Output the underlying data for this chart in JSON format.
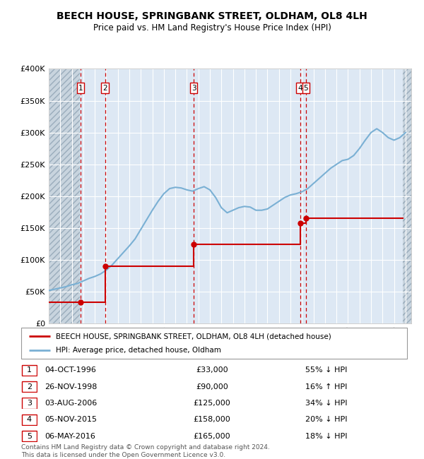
{
  "title": "BEECH HOUSE, SPRINGBANK STREET, OLDHAM, OL8 4LH",
  "subtitle": "Price paid vs. HM Land Registry's House Price Index (HPI)",
  "legend_label_red": "BEECH HOUSE, SPRINGBANK STREET, OLDHAM, OL8 4LH (detached house)",
  "legend_label_blue": "HPI: Average price, detached house, Oldham",
  "footer": "Contains HM Land Registry data © Crown copyright and database right 2024.\nThis data is licensed under the Open Government Licence v3.0.",
  "table": [
    {
      "num": "1",
      "date": "04-OCT-1996",
      "price": "£33,000",
      "hpi": "55% ↓ HPI"
    },
    {
      "num": "2",
      "date": "26-NOV-1998",
      "price": "£90,000",
      "hpi": "16% ↑ HPI"
    },
    {
      "num": "3",
      "date": "03-AUG-2006",
      "price": "£125,000",
      "hpi": "34% ↓ HPI"
    },
    {
      "num": "4",
      "date": "05-NOV-2015",
      "price": "£158,000",
      "hpi": "20% ↓ HPI"
    },
    {
      "num": "5",
      "date": "06-MAY-2016",
      "price": "£165,000",
      "hpi": "18% ↓ HPI"
    }
  ],
  "sale_dates_x": [
    1996.76,
    1998.9,
    2006.59,
    2015.84,
    2016.35
  ],
  "sale_prices_y": [
    33000,
    90000,
    125000,
    158000,
    165000
  ],
  "ylim": [
    0,
    400000
  ],
  "yticks": [
    0,
    50000,
    100000,
    150000,
    200000,
    250000,
    300000,
    350000,
    400000
  ],
  "xlim_min": 1994.0,
  "xlim_max": 2025.5,
  "red_color": "#cc0000",
  "blue_color": "#7ab0d4",
  "bg_plot": "#dde8f4",
  "bg_figure": "#ffffff",
  "grid_color": "#ffffff",
  "hatch_color": "#c8d4de",
  "hpi_x": [
    1994.0,
    1994.5,
    1995.0,
    1995.5,
    1996.0,
    1996.5,
    1997.0,
    1997.5,
    1998.0,
    1998.5,
    1999.0,
    1999.5,
    2000.0,
    2000.5,
    2001.0,
    2001.5,
    2002.0,
    2002.5,
    2003.0,
    2003.5,
    2004.0,
    2004.5,
    2005.0,
    2005.5,
    2006.0,
    2006.5,
    2007.0,
    2007.5,
    2008.0,
    2008.5,
    2009.0,
    2009.5,
    2010.0,
    2010.5,
    2011.0,
    2011.5,
    2012.0,
    2012.5,
    2013.0,
    2013.5,
    2014.0,
    2014.5,
    2015.0,
    2015.5,
    2016.0,
    2016.5,
    2017.0,
    2017.5,
    2018.0,
    2018.5,
    2019.0,
    2019.5,
    2020.0,
    2020.5,
    2021.0,
    2021.5,
    2022.0,
    2022.5,
    2023.0,
    2023.5,
    2024.0,
    2024.5,
    2025.0
  ],
  "hpi_y": [
    52000,
    54000,
    56000,
    58000,
    61000,
    63000,
    67000,
    71000,
    74000,
    78000,
    84000,
    92000,
    102000,
    112000,
    122000,
    133000,
    148000,
    163000,
    178000,
    192000,
    204000,
    212000,
    214000,
    213000,
    210000,
    208000,
    212000,
    215000,
    210000,
    198000,
    182000,
    174000,
    178000,
    182000,
    184000,
    183000,
    178000,
    178000,
    180000,
    186000,
    192000,
    198000,
    202000,
    204000,
    207000,
    212000,
    220000,
    228000,
    236000,
    244000,
    250000,
    256000,
    258000,
    264000,
    275000,
    288000,
    300000,
    306000,
    300000,
    292000,
    288000,
    292000,
    300000
  ]
}
